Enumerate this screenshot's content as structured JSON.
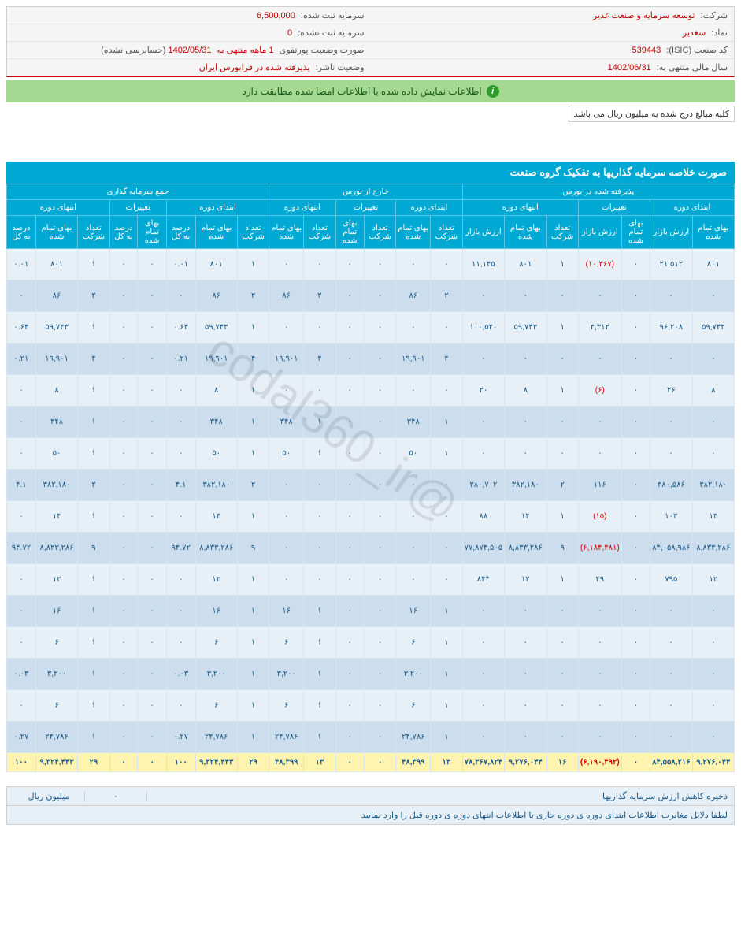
{
  "watermark": "@codal360_ir",
  "info": {
    "company_label": "شرکت:",
    "company_val": "توسعه سرمایه و صنعت غدیر",
    "capital_reg_label": "سرمایه ثبت شده:",
    "capital_reg_val": "6,500,000",
    "symbol_label": "نماد:",
    "symbol_val": "سغدیر",
    "capital_unreg_label": "سرمایه ثبت نشده:",
    "capital_unreg_val": "0",
    "isic_label": "کد صنعت (ISIC):",
    "isic_val": "539443",
    "portfolio_label": "صورت وضعیت پورتفوی",
    "period_text": "1 ماهه منتهی به",
    "period_date": "1402/05/31",
    "audit_text": "(حسابرسی نشده)",
    "fy_label": "سال مالی منتهی به:",
    "fy_val": "1402/06/31",
    "publisher_label": "وضعیت ناشر:",
    "publisher_val": "پذیرفته شده در فرابورس ایران"
  },
  "green_banner": "اطلاعات نمایش داده شده با اطلاعات امضا شده مطابقت دارد",
  "note": "کلیه مبالغ درج شده به میلیون ریال می باشد",
  "table_title": "صورت خلاصه سرمایه گذاریها به تفکیک گروه صنعت",
  "group_headers": {
    "g1": "پذیرفته شده در بورس",
    "g2": "خارج از بورس",
    "g3": "جمع سرمایه گذاری",
    "sub_begin": "ابتدای دوره",
    "sub_change": "تغییرات",
    "sub_end": "انتهای دوره"
  },
  "col_headers": [
    "بهای تمام شده",
    "ارزش بازار",
    "بهای تمام شده",
    "ارزش بازار",
    "تعداد شرکت",
    "بهای تمام شده",
    "ارزش بازار",
    "تعداد شرکت",
    "بهای تمام شده",
    "تعداد شرکت",
    "بهای تمام شده",
    "تعداد شرکت",
    "بهای تمام شده",
    "تعداد شرکت",
    "بهای تمام شده",
    "درصد به کل",
    "بهای تمام شده",
    "درصد به کل",
    "تعداد شرکت",
    "بهای تمام شده",
    "درصد به کل"
  ],
  "rows": [
    [
      "۸۰۱",
      "۲۱,۵۱۲",
      "۰",
      "(۱۰,۳۶۷)",
      "۱",
      "۸۰۱",
      "۱۱,۱۴۵",
      "۰",
      "۰",
      "۰",
      "۰",
      "۰",
      "۰",
      "۱",
      "۸۰۱",
      "۰.۰۱",
      "۰",
      "۰",
      "۱",
      "۸۰۱",
      "۰.۰۱"
    ],
    [
      "۰",
      "۰",
      "۰",
      "۰",
      "۰",
      "۰",
      "۰",
      "۲",
      "۸۶",
      "۰",
      "۰",
      "۲",
      "۸۶",
      "۲",
      "۸۶",
      "۰",
      "۰",
      "۰",
      "۲",
      "۸۶",
      "۰"
    ],
    [
      "۵۹,۷۴۲",
      "۹۶,۲۰۸",
      "۰",
      "۴,۳۱۲",
      "۱",
      "۵۹,۷۴۳",
      "۱۰۰,۵۲۰",
      "۰",
      "۰",
      "۰",
      "۰",
      "۰",
      "۰",
      "۱",
      "۵۹,۷۴۳",
      "۰.۶۴",
      "۰",
      "۰",
      "۱",
      "۵۹,۷۴۳",
      "۰.۶۴"
    ],
    [
      "۰",
      "۰",
      "۰",
      "۰",
      "۰",
      "۰",
      "۰",
      "۴",
      "۱۹,۹۰۱",
      "۰",
      "۰",
      "۴",
      "۱۹,۹۰۱",
      "۴",
      "۱۹,۹۰۱",
      "۰.۲۱",
      "۰",
      "۰",
      "۴",
      "۱۹,۹۰۱",
      "۰.۲۱"
    ],
    [
      "۸",
      "۲۶",
      "۰",
      "(۶)",
      "۱",
      "۸",
      "۲۰",
      "۰",
      "۰",
      "۰",
      "۰",
      "۰",
      "۰",
      "۱",
      "۸",
      "۰",
      "۰",
      "۰",
      "۱",
      "۸",
      "۰"
    ],
    [
      "۰",
      "۰",
      "۰",
      "۰",
      "۰",
      "۰",
      "۰",
      "۱",
      "۳۴۸",
      "۰",
      "۰",
      "۱",
      "۳۴۸",
      "۱",
      "۳۴۸",
      "۰",
      "۰",
      "۰",
      "۱",
      "۳۴۸",
      "۰"
    ],
    [
      "۰",
      "۰",
      "۰",
      "۰",
      "۰",
      "۰",
      "۰",
      "۱",
      "۵۰",
      "۰",
      "۰",
      "۱",
      "۵۰",
      "۱",
      "۵۰",
      "۰",
      "۰",
      "۰",
      "۱",
      "۵۰",
      "۰"
    ],
    [
      "۳۸۲,۱۸۰",
      "۳۸۰,۵۸۶",
      "۰",
      "۱۱۶",
      "۲",
      "۳۸۲,۱۸۰",
      "۳۸۰,۷۰۲",
      "۰",
      "۰",
      "۰",
      "۰",
      "۰",
      "۰",
      "۲",
      "۳۸۲,۱۸۰",
      "۴.۱",
      "۰",
      "۰",
      "۲",
      "۳۸۲,۱۸۰",
      "۴.۱"
    ],
    [
      "۱۴",
      "۱۰۳",
      "۰",
      "(۱۵)",
      "۱",
      "۱۴",
      "۸۸",
      "۰",
      "۰",
      "۰",
      "۰",
      "۰",
      "۰",
      "۱",
      "۱۴",
      "۰",
      "۰",
      "۰",
      "۱",
      "۱۴",
      "۰"
    ],
    [
      "۸,۸۳۳,۲۸۶",
      "۸۴,۰۵۸,۹۸۶",
      "۰",
      "(۶,۱۸۴,۴۸۱)",
      "۹",
      "۸,۸۳۳,۲۸۶",
      "۷۷,۸۷۴,۵۰۵",
      "۰",
      "۰",
      "۰",
      "۰",
      "۰",
      "۰",
      "۹",
      "۸,۸۳۳,۲۸۶",
      "۹۴.۷۲",
      "۰",
      "۰",
      "۹",
      "۸,۸۳۳,۲۸۶",
      "۹۴.۷۲"
    ],
    [
      "۱۲",
      "۷۹۵",
      "۰",
      "۴۹",
      "۱",
      "۱۲",
      "۸۴۴",
      "۰",
      "۰",
      "۰",
      "۰",
      "۰",
      "۰",
      "۱",
      "۱۲",
      "۰",
      "۰",
      "۰",
      "۱",
      "۱۲",
      "۰"
    ],
    [
      "۰",
      "۰",
      "۰",
      "۰",
      "۰",
      "۰",
      "۰",
      "۱",
      "۱۶",
      "۰",
      "۰",
      "۱",
      "۱۶",
      "۱",
      "۱۶",
      "۰",
      "۰",
      "۰",
      "۱",
      "۱۶",
      "۰"
    ],
    [
      "۰",
      "۰",
      "۰",
      "۰",
      "۰",
      "۰",
      "۰",
      "۱",
      "۶",
      "۰",
      "۰",
      "۱",
      "۶",
      "۱",
      "۶",
      "۰",
      "۰",
      "۰",
      "۱",
      "۶",
      "۰"
    ],
    [
      "۰",
      "۰",
      "۰",
      "۰",
      "۰",
      "۰",
      "۰",
      "۱",
      "۳,۲۰۰",
      "۰",
      "۰",
      "۱",
      "۳,۲۰۰",
      "۱",
      "۳,۲۰۰",
      "۰.۰۳",
      "۰",
      "۰",
      "۱",
      "۳,۲۰۰",
      "۰.۰۳"
    ],
    [
      "۰",
      "۰",
      "۰",
      "۰",
      "۰",
      "۰",
      "۰",
      "۱",
      "۶",
      "۰",
      "۰",
      "۱",
      "۶",
      "۱",
      "۶",
      "۰",
      "۰",
      "۰",
      "۱",
      "۶",
      "۰"
    ],
    [
      "۰",
      "۰",
      "۰",
      "۰",
      "۰",
      "۰",
      "۰",
      "۱",
      "۲۴,۷۸۶",
      "۰",
      "۰",
      "۱",
      "۲۴,۷۸۶",
      "۱",
      "۲۴,۷۸۶",
      "۰.۲۷",
      "۰",
      "۰",
      "۱",
      "۲۴,۷۸۶",
      "۰.۲۷"
    ]
  ],
  "total_row": [
    "۹,۲۷۶,۰۴۴",
    "۸۴,۵۵۸,۲۱۶",
    "۰",
    "(۶,۱۹۰,۳۹۲)",
    "۱۶",
    "۹,۲۷۶,۰۴۴",
    "۷۸,۳۶۷,۸۲۴",
    "۱۳",
    "۴۸,۳۹۹",
    "۰",
    "۰",
    "۱۳",
    "۴۸,۳۹۹",
    "۲۹",
    "۹,۳۲۴,۴۴۳",
    "۱۰۰",
    "۰",
    "۰",
    "۲۹",
    "۹,۳۲۴,۴۴۳",
    "۱۰۰"
  ],
  "neg_cells": [
    "(۱۰,۳۶۷)",
    "(۶)",
    "(۱۵)",
    "(۶,۱۸۴,۴۸۱)",
    "(۶,۱۹۰,۳۹۲)"
  ],
  "footer": {
    "reserve_label": "ذخیره کاهش ارزش سرمایه گذاریها",
    "reserve_val": "۰",
    "unit": "میلیون ریال",
    "explain": "لطفا دلایل مغایرت اطلاعات ابتدای دوره ی دوره جاری با اطلاعات انتهای دوره ی دوره قبل را وارد نمایید"
  }
}
